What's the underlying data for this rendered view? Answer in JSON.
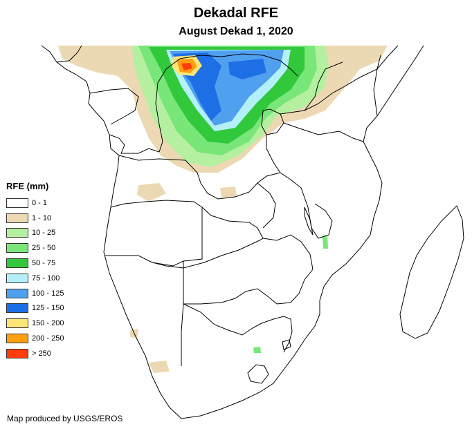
{
  "title": "Dekadal RFE",
  "subtitle": "August Dekad 1, 2020",
  "legend": {
    "title": "RFE (mm)",
    "items": [
      {
        "label": "0 - 1",
        "color": "#ffffff"
      },
      {
        "label": "1 - 10",
        "color": "#ecd9b4"
      },
      {
        "label": "10 - 25",
        "color": "#b4f0a0"
      },
      {
        "label": "25 - 50",
        "color": "#78e678"
      },
      {
        "label": "50 - 75",
        "color": "#32c83c"
      },
      {
        "label": "75 - 100",
        "color": "#b4f0fa"
      },
      {
        "label": "100 - 125",
        "color": "#50a0f0"
      },
      {
        "label": "125 - 150",
        "color": "#1e6ee6"
      },
      {
        "label": "150 - 200",
        "color": "#ffe678"
      },
      {
        "label": "200 - 250",
        "color": "#ffa014"
      },
      {
        "label": "> 250",
        "color": "#ff3c0a"
      }
    ]
  },
  "credit": "Map produced by USGS/EROS"
}
